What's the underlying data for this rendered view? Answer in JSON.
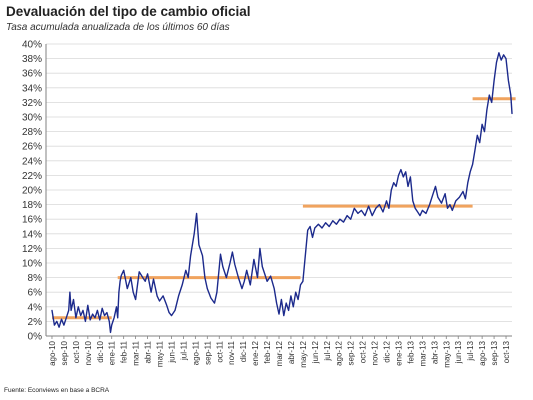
{
  "chart": {
    "title": "Devaluación del tipo de cambio oficial",
    "subtitle": "Tasa acumulada anualizada de los últimos 60 días",
    "source": "Fuente: Econviews en base a BCRA"
  },
  "colors": {
    "line": "#1c2a8c",
    "average": "#f0a35e",
    "grid": "#d9d9d9",
    "axis": "#808080"
  },
  "chart_data": {
    "type": "line",
    "title": "Devaluación del tipo de cambio oficial",
    "subtitle": "Tasa acumulada anualizada de los últimos 60 días",
    "xlabel": "",
    "ylabel": "",
    "ylim": [
      0,
      40
    ],
    "y_ticks": [
      "0%",
      "2%",
      "4%",
      "6%",
      "8%",
      "10%",
      "12%",
      "14%",
      "16%",
      "18%",
      "20%",
      "22%",
      "24%",
      "26%",
      "28%",
      "30%",
      "32%",
      "34%",
      "36%",
      "38%",
      "40%"
    ],
    "x_ticks": [
      "ago-10",
      "sep-10",
      "oct-10",
      "nov-10",
      "dic-10",
      "ene-11",
      "feb-11",
      "mar-11",
      "abr-11",
      "may-11",
      "jun-11",
      "jul-11",
      "ago-11",
      "sep-11",
      "oct-11",
      "nov-11",
      "dic-11",
      "ene-12",
      "feb-12",
      "mar-12",
      "abr-12",
      "may-12",
      "jun-12",
      "jul-12",
      "ago-12",
      "sep-12",
      "oct-12",
      "nov-12",
      "dic-12",
      "ene-13",
      "feb-13",
      "mar-13",
      "abr-13",
      "may-13",
      "jun-13",
      "jul-13",
      "ago-13",
      "sep-13",
      "oct-13"
    ],
    "grid": true,
    "series": [
      {
        "values": [
          [
            0.0,
            3.5
          ],
          [
            0.2,
            1.5
          ],
          [
            0.4,
            2.0
          ],
          [
            0.6,
            1.2
          ],
          [
            0.8,
            2.3
          ],
          [
            1.0,
            1.5
          ],
          [
            1.2,
            2.5
          ],
          [
            1.4,
            3.5
          ],
          [
            1.5,
            6.0
          ],
          [
            1.6,
            3.5
          ],
          [
            1.8,
            5.0
          ],
          [
            2.0,
            2.5
          ],
          [
            2.2,
            4.0
          ],
          [
            2.4,
            2.8
          ],
          [
            2.6,
            3.5
          ],
          [
            2.8,
            2.0
          ],
          [
            3.0,
            4.2
          ],
          [
            3.2,
            2.2
          ],
          [
            3.4,
            3.0
          ],
          [
            3.6,
            2.5
          ],
          [
            3.8,
            3.5
          ],
          [
            4.0,
            2.2
          ],
          [
            4.2,
            3.8
          ],
          [
            4.4,
            2.8
          ],
          [
            4.6,
            3.2
          ],
          [
            4.8,
            2.0
          ],
          [
            4.9,
            0.5
          ],
          [
            5.0,
            1.5
          ],
          [
            5.2,
            2.5
          ],
          [
            5.4,
            4.0
          ],
          [
            5.5,
            2.5
          ],
          [
            5.6,
            6.0
          ],
          [
            5.7,
            7.5
          ],
          [
            5.8,
            8.3
          ],
          [
            6.0,
            9.0
          ],
          [
            6.3,
            6.5
          ],
          [
            6.6,
            8.0
          ],
          [
            6.8,
            6.0
          ],
          [
            7.0,
            5.0
          ],
          [
            7.3,
            8.8
          ],
          [
            7.6,
            8.0
          ],
          [
            7.8,
            7.5
          ],
          [
            8.0,
            8.5
          ],
          [
            8.3,
            6.0
          ],
          [
            8.5,
            7.8
          ],
          [
            8.8,
            5.5
          ],
          [
            9.0,
            4.8
          ],
          [
            9.3,
            5.5
          ],
          [
            9.6,
            4.2
          ],
          [
            9.8,
            3.2
          ],
          [
            10.0,
            2.8
          ],
          [
            10.3,
            3.5
          ],
          [
            10.6,
            5.5
          ],
          [
            10.9,
            7.0
          ],
          [
            11.2,
            9.0
          ],
          [
            11.4,
            8.0
          ],
          [
            11.6,
            11.0
          ],
          [
            11.9,
            14.0
          ],
          [
            12.1,
            16.8
          ],
          [
            12.3,
            12.5
          ],
          [
            12.6,
            11.0
          ],
          [
            12.8,
            8.0
          ],
          [
            13.0,
            6.5
          ],
          [
            13.3,
            5.2
          ],
          [
            13.6,
            4.5
          ],
          [
            13.8,
            6.0
          ],
          [
            14.1,
            11.2
          ],
          [
            14.3,
            9.5
          ],
          [
            14.6,
            8.0
          ],
          [
            14.9,
            10.0
          ],
          [
            15.1,
            11.5
          ],
          [
            15.3,
            9.8
          ],
          [
            15.6,
            8.0
          ],
          [
            15.9,
            6.5
          ],
          [
            16.1,
            7.5
          ],
          [
            16.3,
            9.0
          ],
          [
            16.6,
            7.0
          ],
          [
            16.9,
            10.5
          ],
          [
            17.2,
            8.0
          ],
          [
            17.4,
            12.0
          ],
          [
            17.6,
            9.5
          ],
          [
            17.8,
            8.5
          ],
          [
            18.0,
            7.5
          ],
          [
            18.3,
            8.2
          ],
          [
            18.6,
            6.5
          ],
          [
            18.8,
            4.5
          ],
          [
            19.0,
            3.0
          ],
          [
            19.2,
            5.0
          ],
          [
            19.4,
            2.8
          ],
          [
            19.6,
            4.5
          ],
          [
            19.8,
            3.5
          ],
          [
            20.0,
            5.5
          ],
          [
            20.2,
            4.0
          ],
          [
            20.4,
            6.0
          ],
          [
            20.6,
            5.0
          ],
          [
            20.8,
            7.0
          ],
          [
            21.0,
            7.5
          ],
          [
            21.2,
            11.0
          ],
          [
            21.4,
            14.5
          ],
          [
            21.6,
            15.0
          ],
          [
            21.8,
            13.5
          ],
          [
            22.0,
            14.8
          ],
          [
            22.3,
            15.3
          ],
          [
            22.6,
            14.8
          ],
          [
            22.9,
            15.5
          ],
          [
            23.2,
            15.0
          ],
          [
            23.5,
            15.8
          ],
          [
            23.8,
            15.3
          ],
          [
            24.1,
            16.0
          ],
          [
            24.4,
            15.6
          ],
          [
            24.7,
            16.5
          ],
          [
            25.0,
            16.0
          ],
          [
            25.3,
            17.5
          ],
          [
            25.6,
            16.8
          ],
          [
            25.9,
            17.2
          ],
          [
            26.2,
            16.5
          ],
          [
            26.5,
            17.8
          ],
          [
            26.8,
            16.5
          ],
          [
            27.1,
            17.5
          ],
          [
            27.4,
            18.0
          ],
          [
            27.7,
            17.0
          ],
          [
            28.0,
            18.5
          ],
          [
            28.2,
            17.5
          ],
          [
            28.4,
            20.0
          ],
          [
            28.6,
            21.0
          ],
          [
            28.8,
            20.5
          ],
          [
            29.0,
            22.0
          ],
          [
            29.2,
            22.8
          ],
          [
            29.4,
            21.8
          ],
          [
            29.6,
            22.5
          ],
          [
            29.8,
            20.5
          ],
          [
            30.0,
            21.8
          ],
          [
            30.2,
            18.5
          ],
          [
            30.4,
            17.5
          ],
          [
            30.6,
            17.0
          ],
          [
            30.8,
            16.5
          ],
          [
            31.0,
            17.2
          ],
          [
            31.3,
            16.8
          ],
          [
            31.6,
            18.0
          ],
          [
            31.9,
            19.5
          ],
          [
            32.1,
            20.5
          ],
          [
            32.3,
            19.0
          ],
          [
            32.6,
            18.2
          ],
          [
            32.9,
            19.5
          ],
          [
            33.1,
            17.5
          ],
          [
            33.3,
            18.0
          ],
          [
            33.5,
            17.2
          ],
          [
            33.8,
            18.5
          ],
          [
            34.1,
            19.0
          ],
          [
            34.4,
            19.8
          ],
          [
            34.6,
            18.8
          ],
          [
            34.8,
            21.0
          ],
          [
            35.0,
            22.5
          ],
          [
            35.2,
            23.5
          ],
          [
            35.4,
            25.5
          ],
          [
            35.6,
            27.5
          ],
          [
            35.8,
            26.5
          ],
          [
            36.0,
            29.0
          ],
          [
            36.2,
            28.0
          ],
          [
            36.4,
            31.0
          ],
          [
            36.6,
            33.0
          ],
          [
            36.8,
            32.0
          ],
          [
            37.0,
            35.0
          ],
          [
            37.2,
            37.5
          ],
          [
            37.4,
            38.8
          ],
          [
            37.6,
            37.8
          ],
          [
            37.8,
            38.5
          ],
          [
            38.0,
            38.0
          ],
          [
            38.1,
            36.5
          ],
          [
            38.2,
            35.0
          ],
          [
            38.3,
            34.0
          ],
          [
            38.4,
            33.0
          ],
          [
            38.5,
            30.5
          ]
        ]
      },
      {
        "values": [
          [
            0.0,
            2.5
          ],
          [
            5.0,
            2.5
          ]
        ]
      },
      {
        "values": [
          [
            5.5,
            8.0
          ],
          [
            20.8,
            8.0
          ]
        ]
      },
      {
        "values": [
          [
            21.0,
            17.8
          ],
          [
            35.2,
            17.8
          ]
        ]
      },
      {
        "values": [
          [
            35.2,
            32.5
          ],
          [
            38.8,
            32.5
          ]
        ]
      }
    ]
  }
}
